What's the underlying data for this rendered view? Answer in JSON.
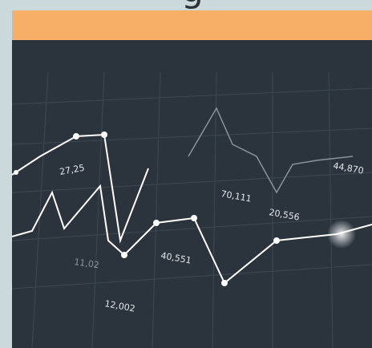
{
  "heading": "g",
  "image_labels": [
    "27,25",
    "70,111",
    "20,556",
    "44,870",
    "40,551",
    "12,002",
    "11,02"
  ]
}
